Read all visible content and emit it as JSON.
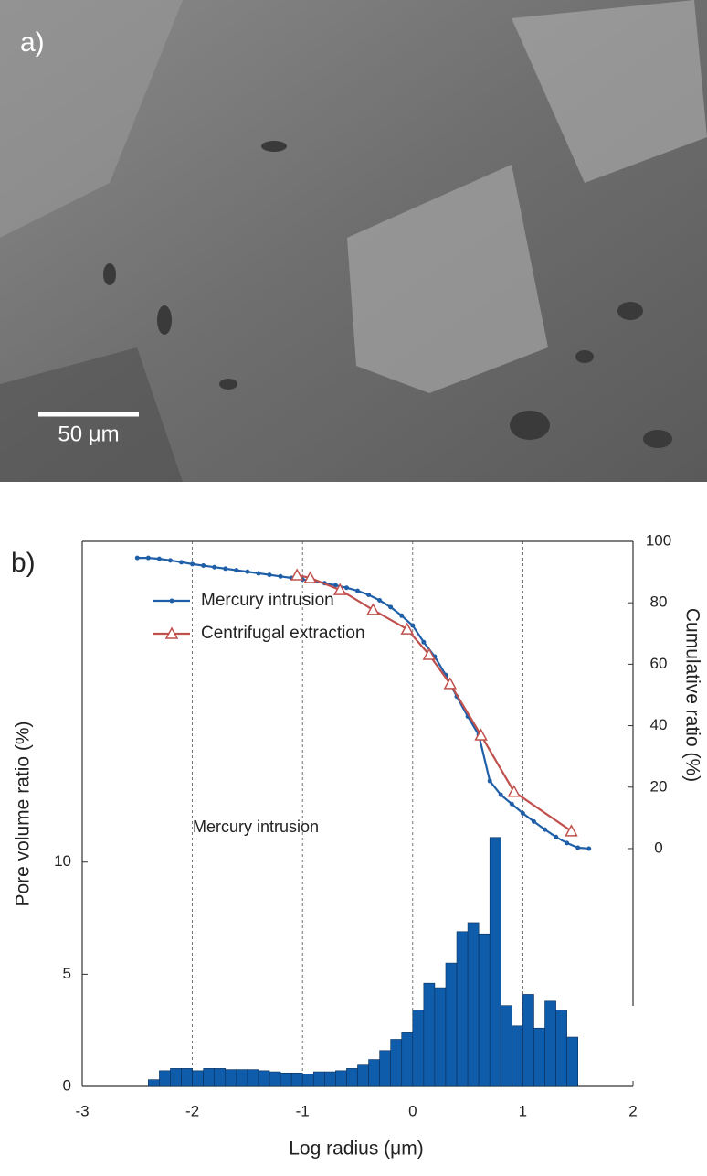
{
  "photo": {
    "label": "a)",
    "scale_bar": "50 μm"
  },
  "chart_data": {
    "type": "histogram",
    "panel_label": "b)",
    "x_label": "Log radius (μm)",
    "y_label": "Pore volume ratio (%)",
    "y2_label": "Cumulative ratio (%)",
    "annotation": "Mercury intrusion",
    "bins": [
      -2.4,
      -2.3,
      -2.2,
      -2.1,
      -2.0,
      -1.9,
      -1.8,
      -1.7,
      -1.6,
      -1.5,
      -1.4,
      -1.3,
      -1.2,
      -1.1,
      -1.0,
      -0.9,
      -0.8,
      -0.7,
      -0.6,
      -0.5,
      -0.4,
      -0.3,
      -0.2,
      -0.1,
      0.0,
      0.1,
      0.2,
      0.3,
      0.4,
      0.5,
      0.6,
      0.7,
      0.8,
      0.9,
      1.0,
      1.1,
      1.2,
      1.3,
      1.4,
      1.5
    ],
    "values": [
      0.3,
      0.7,
      0.8,
      0.8,
      0.7,
      0.8,
      0.8,
      0.75,
      0.75,
      0.75,
      0.7,
      0.65,
      0.6,
      0.6,
      0.55,
      0.65,
      0.65,
      0.7,
      0.8,
      0.95,
      1.2,
      1.6,
      2.1,
      2.4,
      3.4,
      4.6,
      4.4,
      5.5,
      6.9,
      7.3,
      6.8,
      11.1,
      3.6,
      2.7,
      4.1,
      2.6,
      3.8,
      3.4,
      2.2
    ],
    "color": "#0f5cab",
    "xlim": [
      -3,
      2
    ],
    "xticks": [
      -3,
      -2,
      -1,
      0,
      1,
      2
    ],
    "ylim": [
      0,
      24.3
    ],
    "yticks": [
      0,
      5,
      10
    ],
    "y2lim": [
      -77.4,
      100
    ],
    "y2ticks": [
      0,
      20,
      40,
      60,
      80,
      100
    ],
    "grid_x": true,
    "legend": "upper left",
    "series": [
      {
        "name": "Mercury intrusion",
        "color": "#1f5fa8",
        "axis": "y2",
        "marker": "dot",
        "x": [
          -2.5,
          -2.4,
          -2.3,
          -2.2,
          -2.1,
          -2.0,
          -1.9,
          -1.8,
          -1.7,
          -1.6,
          -1.5,
          -1.4,
          -1.3,
          -1.2,
          -1.1,
          -1.0,
          -0.9,
          -0.8,
          -0.7,
          -0.6,
          -0.5,
          -0.4,
          -0.3,
          -0.2,
          -0.1,
          0.0,
          0.1,
          0.2,
          0.3,
          0.4,
          0.5,
          0.6,
          0.7,
          0.8,
          0.9,
          1.0,
          1.1,
          1.2,
          1.3,
          1.4,
          1.5,
          1.6
        ],
        "values": [
          94.6,
          94.6,
          94.3,
          93.8,
          93.2,
          92.6,
          92.1,
          91.6,
          91.1,
          90.6,
          90.1,
          89.6,
          89.1,
          88.6,
          88.1,
          87.6,
          87.0,
          86.4,
          85.7,
          84.9,
          83.9,
          82.6,
          80.8,
          78.6,
          75.8,
          72.6,
          67.2,
          62.5,
          56.5,
          49.5,
          43,
          37,
          22,
          17.5,
          14.5,
          11.5,
          8.8,
          6.2,
          3.8,
          1.8,
          0.3,
          0
        ]
      },
      {
        "name": "Centrifugal extraction",
        "color": "#c0504d",
        "axis": "y2",
        "marker": "triangle",
        "x": [
          -1.05,
          -0.93,
          -0.66,
          -0.36,
          -0.05,
          0.15,
          0.34,
          0.62,
          0.92,
          1.44
        ],
        "values": [
          89,
          88.1,
          84.2,
          77.7,
          71.4,
          63.1,
          53.6,
          36.9,
          18.5,
          5.7
        ]
      }
    ]
  }
}
